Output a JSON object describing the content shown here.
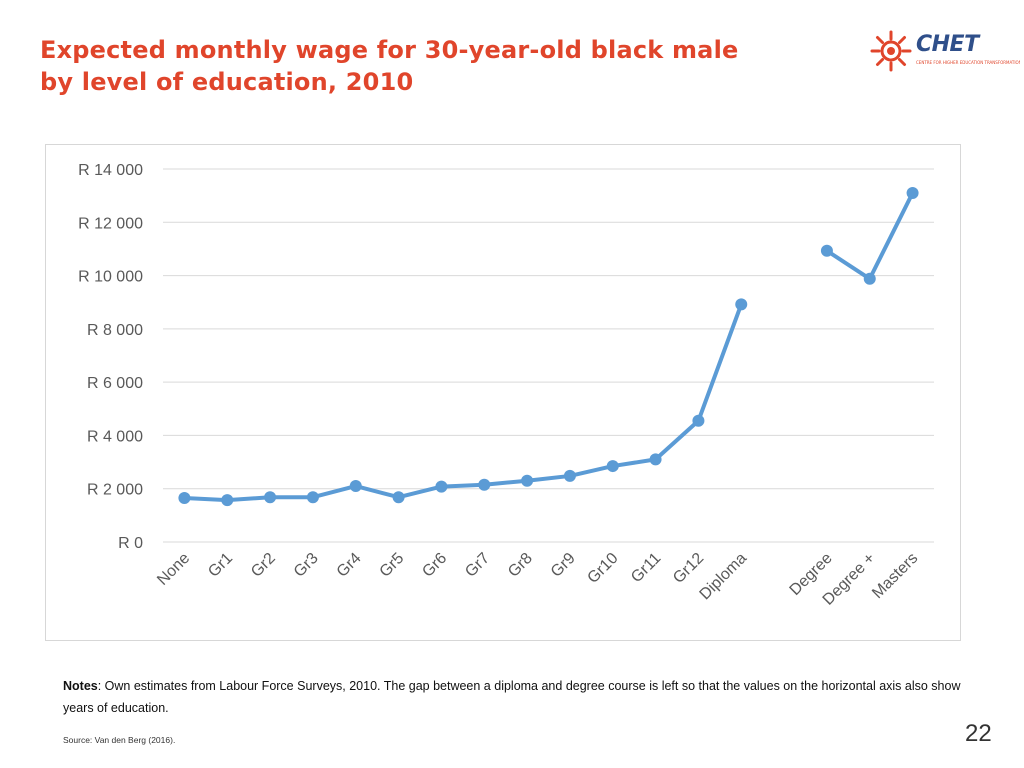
{
  "slide": {
    "title_line1": "Expected monthly wage for 30-year-old black male",
    "title_line2": "by level of education, 2010",
    "logo_text": "CHET",
    "logo_subtext": "CENTRE FOR HIGHER EDUCATION TRANSFORMATION",
    "notes_label": "Notes",
    "notes_text": ": Own estimates from Labour Force Surveys, 2010. The gap between a diploma and degree course is left so that the values on the horizontal axis also show years of education.",
    "source": "Source: Van den Berg (2016).",
    "page_number": "22"
  },
  "colors": {
    "title": "#e0452b",
    "line": "#5b9bd5",
    "grid": "#d9d9d9",
    "axis_text": "#595959",
    "logo_blue": "#2f4f8a",
    "logo_orange": "#e0452b"
  },
  "chart_data": {
    "type": "line",
    "title": "",
    "xlabel": "",
    "ylabel": "",
    "ylim": [
      0,
      14000
    ],
    "yticks": [
      0,
      2000,
      4000,
      6000,
      8000,
      10000,
      12000,
      14000
    ],
    "ytick_labels": [
      "R 0",
      "R 2 000",
      "R 4 000",
      "R 6 000",
      "R 8 000",
      "R 10 000",
      "R 12 000",
      "R 14 000"
    ],
    "categories": [
      "None",
      "Gr1",
      "Gr2",
      "Gr3",
      "Gr4",
      "Gr5",
      "Gr6",
      "Gr7",
      "Gr8",
      "Gr9",
      "Gr10",
      "Gr11",
      "Gr12",
      "Diploma",
      "",
      "Degree",
      "Degree +",
      "Masters"
    ],
    "grid": true,
    "legend": "none",
    "series": [
      {
        "name": "Expected monthly wage",
        "values": [
          1650,
          1570,
          1680,
          1680,
          2100,
          1680,
          2080,
          2150,
          2300,
          2480,
          2850,
          3100,
          4550,
          8920,
          null,
          10930,
          9880,
          13100
        ]
      }
    ]
  }
}
